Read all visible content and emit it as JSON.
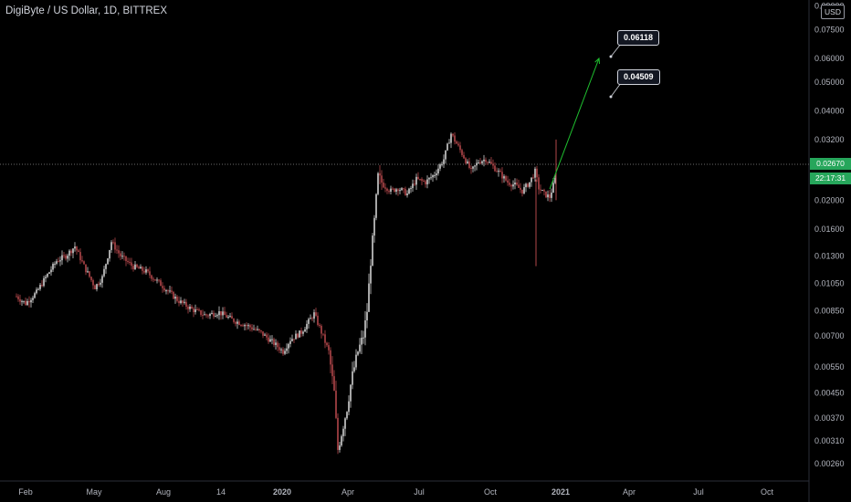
{
  "header": {
    "title": "DigiByte / US Dollar, 1D, BITTREX",
    "currency": "USD"
  },
  "last_price": {
    "value": "0.02670",
    "countdown": "22:17:31"
  },
  "callouts": [
    "0.06118",
    "0.04509"
  ],
  "colors": {
    "background": "#000000",
    "up": "#cfcfcf",
    "down": "#b2474a",
    "arrow": "#1fbf2f",
    "badge": "#26a65b",
    "axis_text": "#b2b5be"
  },
  "chart_data": {
    "type": "candlestick",
    "title": "DigiByte / US Dollar, 1D, BITTREX",
    "y_scale": "log",
    "ylim": [
      0.0023,
      0.0925
    ],
    "y_ticks": [
      "0.00260",
      "0.00310",
      "0.00370",
      "0.00450",
      "0.00550",
      "0.00700",
      "0.00850",
      "0.01050",
      "0.01300",
      "0.01600",
      "0.02000",
      "0.02670",
      "0.03200",
      "0.04000",
      "0.05000",
      "0.06000",
      "0.07500",
      "0.09000"
    ],
    "x_ticks": [
      "Feb",
      "May",
      "Aug",
      "14",
      "2020",
      "Apr",
      "Jul",
      "Oct",
      "2021",
      "Apr",
      "Jul",
      "Oct"
    ],
    "series_close": [
      [
        "Feb",
        0.0095
      ],
      [
        "Mar",
        0.0125
      ],
      [
        "Apr",
        0.014
      ],
      [
        "May",
        0.012
      ],
      [
        "Jun",
        0.0105
      ],
      [
        "Jul",
        0.009
      ],
      [
        "Aug",
        0.0082
      ],
      [
        "Sep",
        0.008
      ],
      [
        "Oct",
        0.0075
      ],
      [
        "Nov",
        0.0072
      ],
      [
        "Dec",
        0.0065
      ],
      [
        "2020",
        0.0068
      ],
      [
        "Feb 2020",
        0.008
      ],
      [
        "Mar 2020",
        0.003
      ],
      [
        "Apr 2020",
        0.0082
      ],
      [
        "May 2020",
        0.023
      ],
      [
        "Jun 2020",
        0.0245
      ],
      [
        "Jul 2020",
        0.033
      ],
      [
        "Aug 2020",
        0.027
      ],
      [
        "Sep 2020",
        0.0245
      ],
      [
        "Oct 2020",
        0.0235
      ],
      [
        "Nov 2020",
        0.0225
      ],
      [
        "Dec 2020",
        0.0267
      ]
    ],
    "annotations": [
      {
        "type": "arrow",
        "from_value": 0.0218,
        "to_value": 0.06
      },
      {
        "type": "label",
        "text": "0.06118"
      },
      {
        "type": "label",
        "text": "0.04509"
      }
    ],
    "grid": false
  }
}
